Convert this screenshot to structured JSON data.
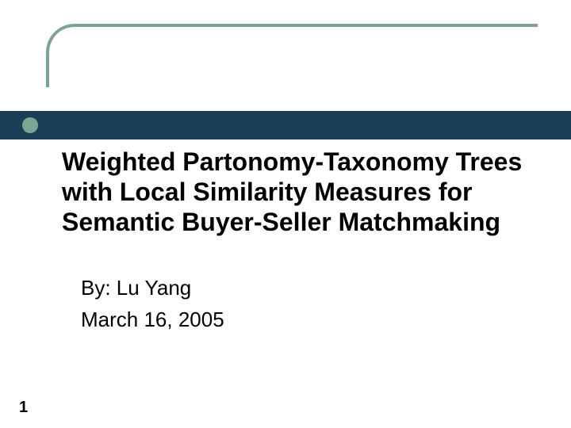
{
  "colors": {
    "accent": "#7ba696",
    "bar": "#1c3e57",
    "bullet": "#7ba696"
  },
  "title": "Weighted Partonomy-Taxonomy Trees with Local Similarity Measures for Semantic Buyer-Seller Matchmaking",
  "author": "By: Lu Yang",
  "date": "March 16, 2005",
  "page_number": "1",
  "typography": {
    "title_fontsize": 32,
    "body_fontsize": 26,
    "page_number_fontsize": 20
  }
}
